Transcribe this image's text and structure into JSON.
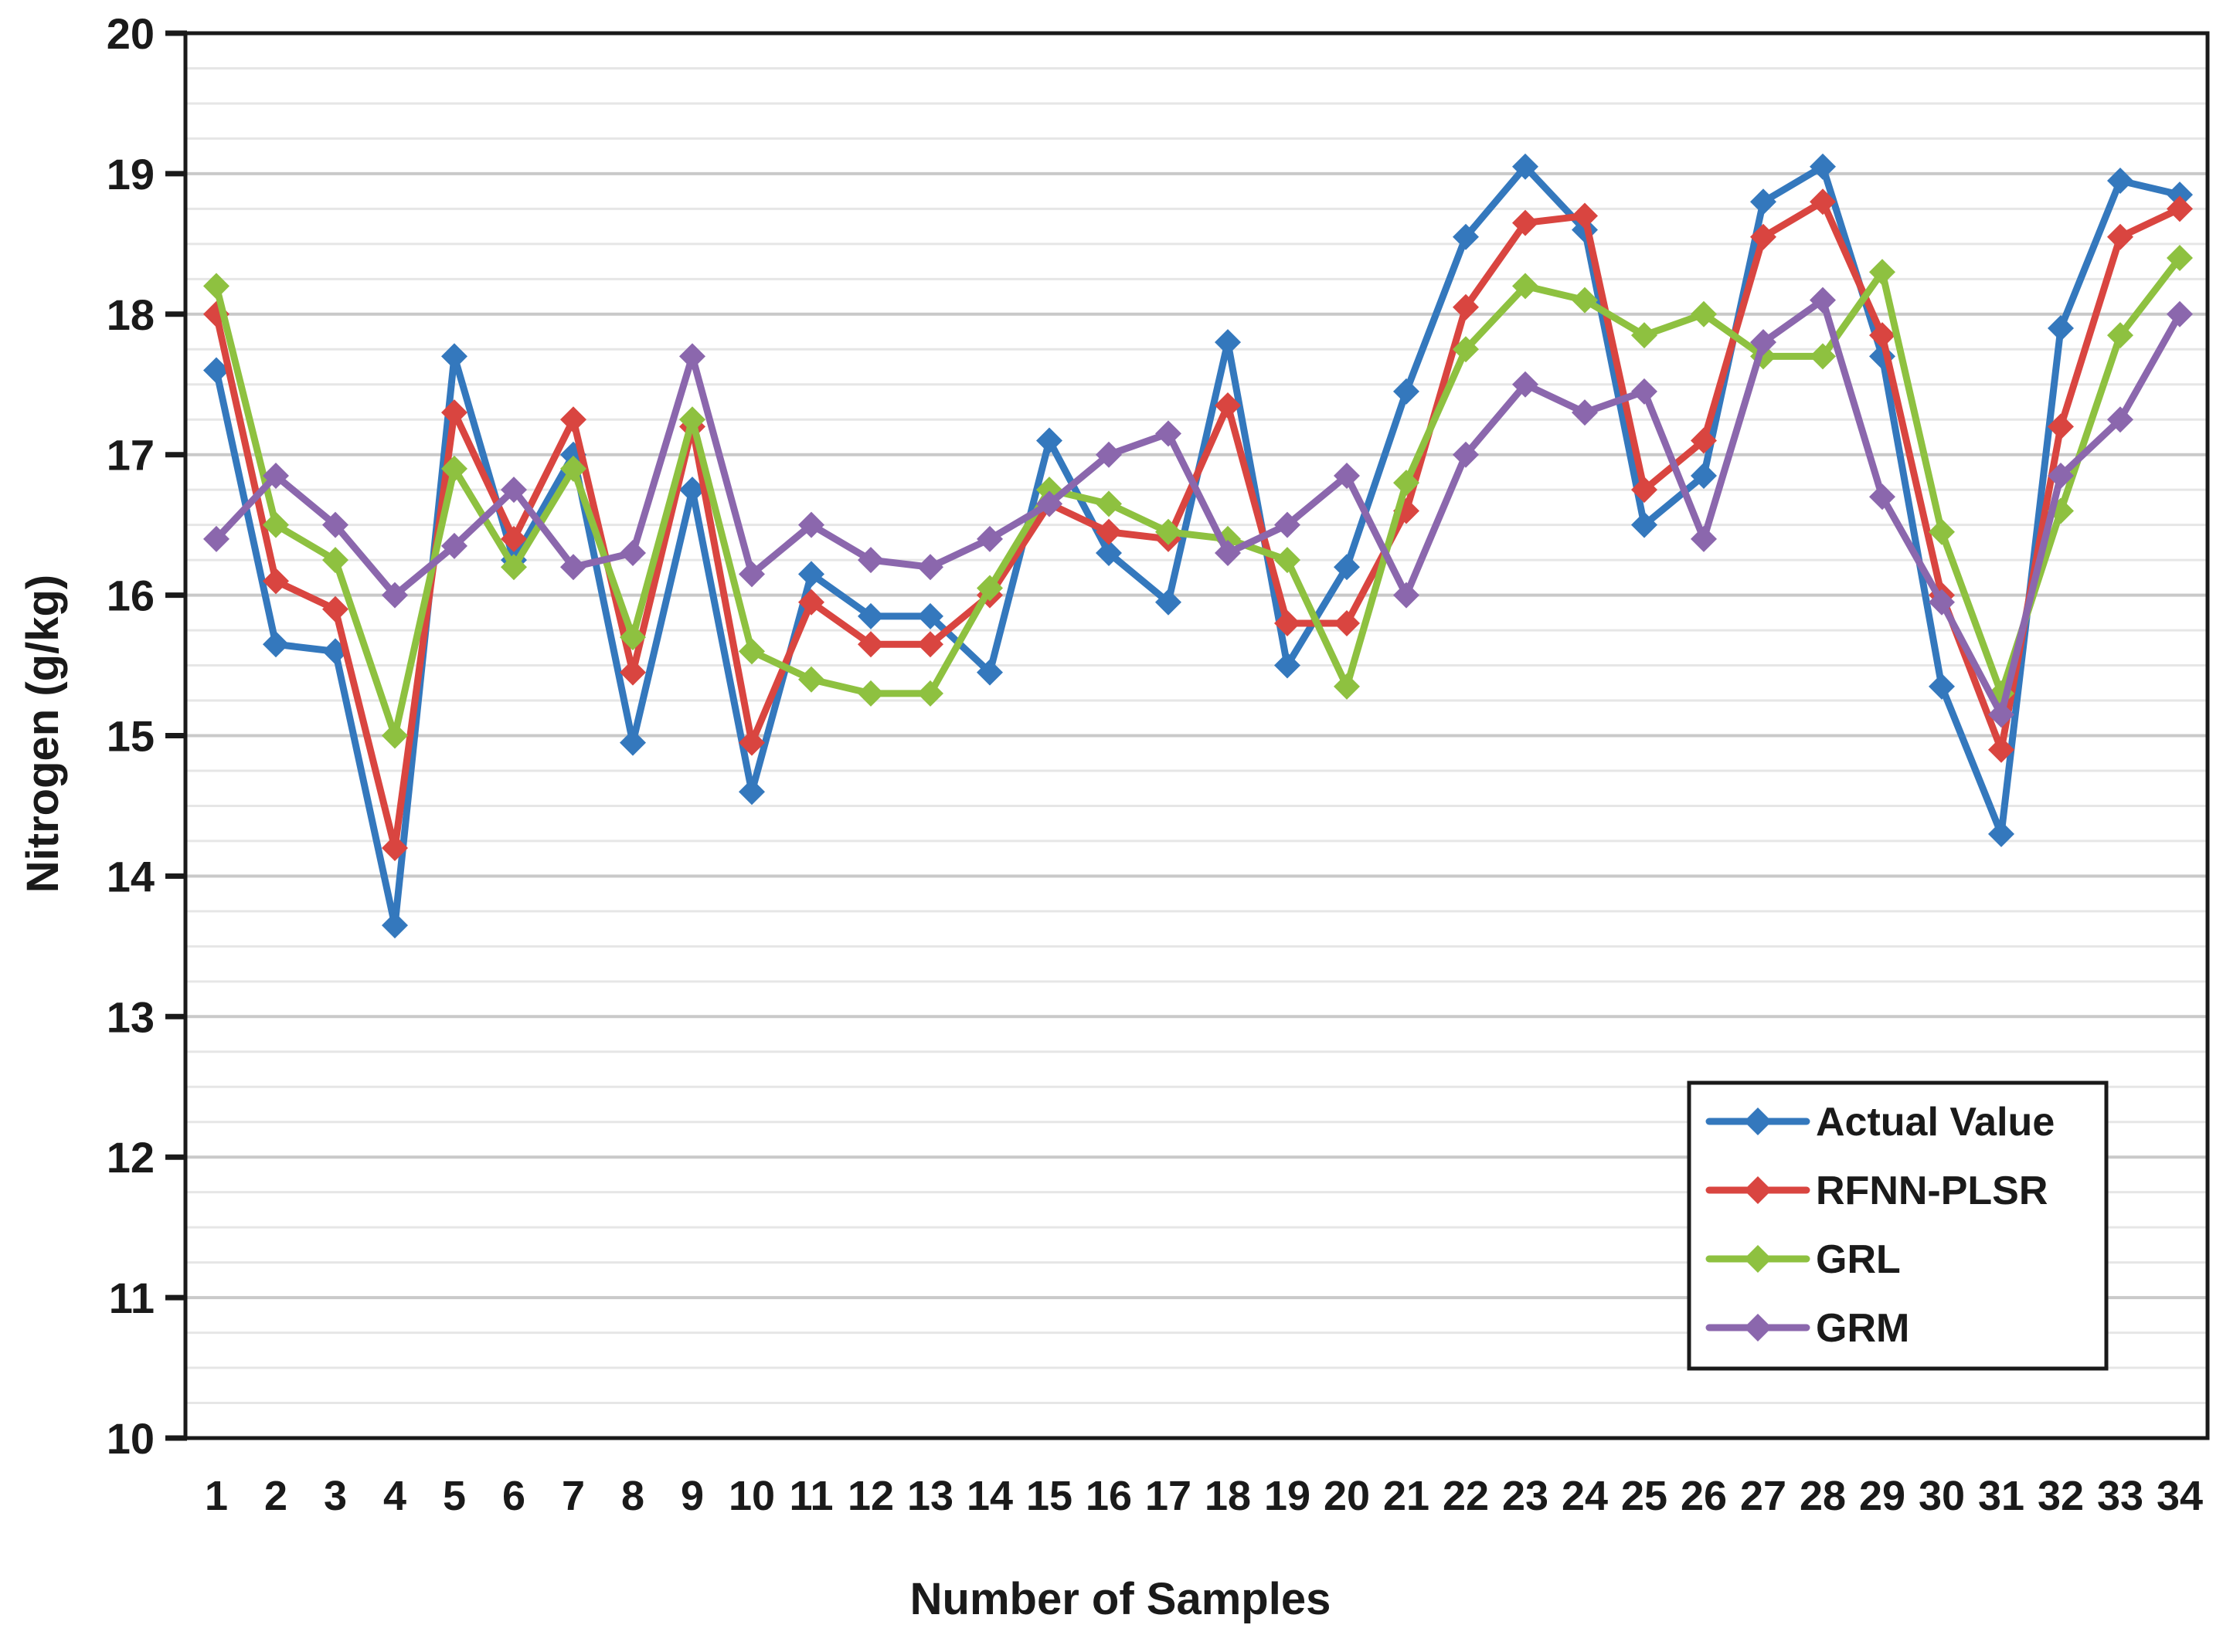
{
  "chart_data": {
    "type": "line",
    "title": "",
    "xlabel": "Number of Samples",
    "ylabel": "Nitrogen (g/kg)",
    "x_categories": [
      "1",
      "2",
      "3",
      "4",
      "5",
      "6",
      "7",
      "8",
      "9",
      "10",
      "11",
      "12",
      "13",
      "14",
      "15",
      "16",
      "17",
      "18",
      "19",
      "20",
      "21",
      "22",
      "23",
      "24",
      "25",
      "26",
      "27",
      "28",
      "29",
      "30",
      "31",
      "32",
      "33",
      "34"
    ],
    "ylim": [
      10,
      20
    ],
    "ytick_labels": [
      "10",
      "11",
      "12",
      "13",
      "14",
      "15",
      "16",
      "17",
      "18",
      "19",
      "20"
    ],
    "ytick_step": 1,
    "minor_grid_step": 0.25,
    "grid_on": true,
    "legend_position": "inside-bottom-right",
    "series": [
      {
        "name": "Actual Value",
        "color": "#3478BD",
        "values": [
          17.6,
          15.65,
          15.6,
          13.65,
          17.7,
          16.25,
          17.0,
          14.95,
          16.75,
          14.6,
          16.15,
          15.85,
          15.85,
          15.45,
          17.1,
          16.3,
          15.95,
          17.8,
          15.5,
          16.2,
          17.45,
          18.55,
          19.05,
          18.6,
          16.5,
          16.85,
          18.8,
          19.05,
          17.7,
          15.35,
          14.3,
          17.9,
          18.95,
          18.85
        ]
      },
      {
        "name": "RFNN-PLSR",
        "color": "#D94540",
        "values": [
          18.0,
          16.1,
          15.9,
          14.2,
          17.3,
          16.4,
          17.25,
          15.45,
          17.2,
          14.95,
          15.95,
          15.65,
          15.65,
          16.0,
          16.65,
          16.45,
          16.4,
          17.35,
          15.8,
          15.8,
          16.6,
          18.05,
          18.65,
          18.7,
          16.75,
          17.1,
          18.55,
          18.8,
          17.85,
          16.0,
          14.9,
          17.2,
          18.55,
          18.75
        ]
      },
      {
        "name": "GRL",
        "color": "#8EC140",
        "values": [
          18.2,
          16.5,
          16.25,
          15.0,
          16.9,
          16.2,
          16.9,
          15.7,
          17.25,
          15.6,
          15.4,
          15.3,
          15.3,
          16.05,
          16.75,
          16.65,
          16.45,
          16.4,
          16.25,
          15.35,
          16.8,
          17.75,
          18.2,
          18.1,
          17.85,
          18.0,
          17.7,
          17.7,
          18.3,
          16.45,
          15.3,
          16.6,
          17.85,
          18.4
        ]
      },
      {
        "name": "GRM",
        "color": "#8B67AD",
        "values": [
          16.4,
          16.85,
          16.5,
          16.0,
          16.35,
          16.75,
          16.2,
          16.3,
          17.7,
          16.15,
          16.5,
          16.25,
          16.2,
          16.4,
          16.65,
          17.0,
          17.15,
          16.3,
          16.5,
          16.85,
          16.0,
          17.0,
          17.5,
          17.3,
          17.45,
          16.4,
          17.8,
          18.1,
          16.7,
          15.95,
          15.15,
          16.85,
          17.25,
          18.0
        ]
      }
    ],
    "colors": {
      "minor_gridline": "#E6E6E6",
      "major_gridline": "#C9C9C9",
      "axis_frame": "#1a1a1a",
      "background": "#ffffff"
    }
  }
}
